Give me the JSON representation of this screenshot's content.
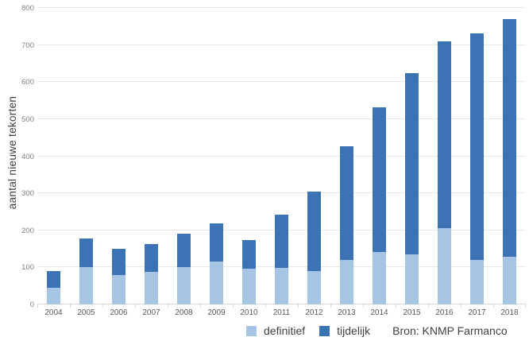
{
  "chart_data": {
    "type": "bar",
    "stacked": true,
    "title": "",
    "xlabel": "",
    "ylabel": "aantal nieuwe tekorten",
    "ylim": [
      0,
      800
    ],
    "yticks": [
      0,
      100,
      200,
      300,
      400,
      500,
      600,
      700,
      800
    ],
    "grid": true,
    "legend_position": "bottom",
    "categories": [
      "2004",
      "2005",
      "2006",
      "2007",
      "2008",
      "2009",
      "2010",
      "2011",
      "2012",
      "2013",
      "2014",
      "2015",
      "2016",
      "2017",
      "2018"
    ],
    "series": [
      {
        "name": "definitief",
        "color": "#a6c4e4",
        "values": [
          45,
          100,
          80,
          87,
          100,
          115,
          97,
          99,
          91,
          121,
          142,
          136,
          207,
          120,
          129
        ]
      },
      {
        "name": "tijdelijk",
        "color": "#3c73b4",
        "values": [
          46,
          78,
          70,
          76,
          91,
          103,
          77,
          143,
          214,
          306,
          389,
          489,
          503,
          611,
          640
        ]
      }
    ],
    "totals": [
      91,
      178,
      150,
      163,
      191,
      218,
      174,
      242,
      305,
      427,
      531,
      625,
      710,
      731,
      769
    ]
  },
  "source": {
    "label": "Bron: KNMP Farmanco"
  },
  "colors": {
    "gridline": "#e8e8e8",
    "axis": "#d9d9d9",
    "ytick_text": "#7f7f7f",
    "xtick_text": "#595959",
    "text": "#404040"
  }
}
